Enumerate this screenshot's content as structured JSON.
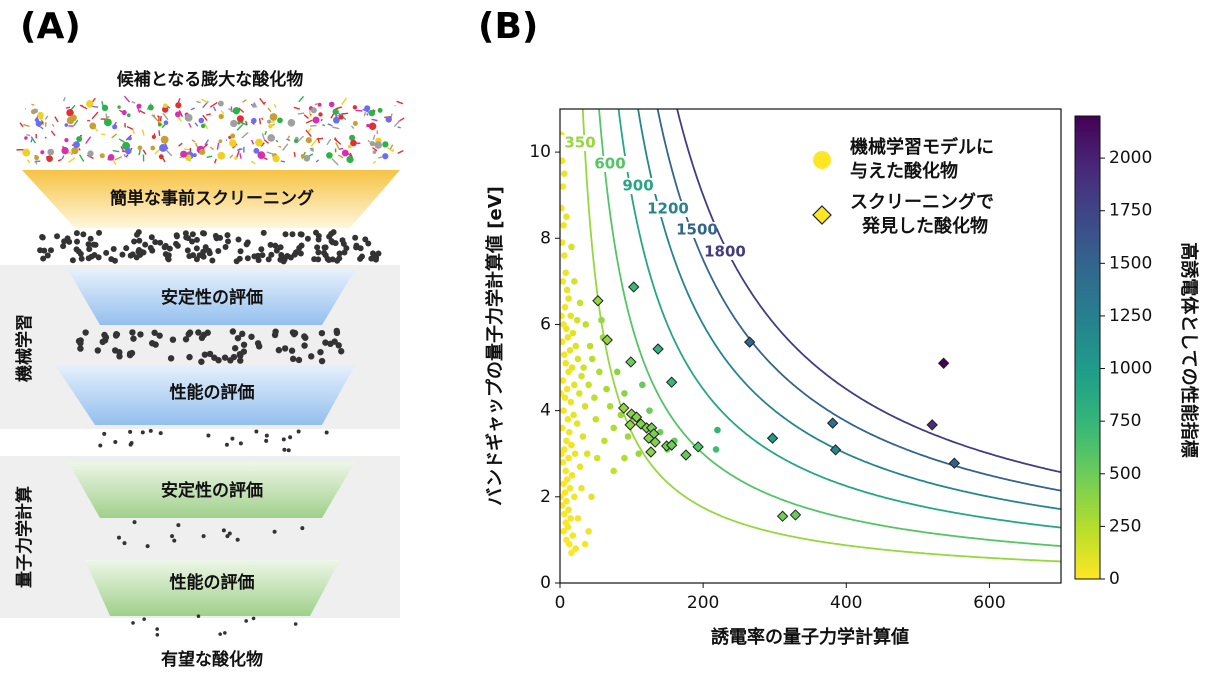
{
  "panel_a": {
    "label": "(A)",
    "top_label": "候補となる膨大な酸化物",
    "steps": [
      "簡単な事前スクリーニング",
      "安定性の評価",
      "性能の評価",
      "安定性の評価",
      "性能の評価"
    ],
    "groups": [
      "機械学習",
      "量子力学計算"
    ],
    "result_label": "有望な酸化物"
  },
  "chart_data": {
    "type": "scatter",
    "panel_label": "(B)",
    "xlabel": "誘電率の量子力学計算値",
    "ylabel": "バンドギャップの量子力学計算値 [eV]",
    "xlim": [
      0,
      700
    ],
    "ylim": [
      0,
      11
    ],
    "xticks": [
      0,
      200,
      400,
      600
    ],
    "yticks": [
      0,
      2,
      4,
      6,
      8,
      10
    ],
    "colormap": "viridis_r",
    "legend": "upper right",
    "colorbar": {
      "label": "高誘電体としての性能指標",
      "lim": [
        0,
        2200
      ],
      "ticks": [
        0,
        250,
        500,
        750,
        1000,
        1250,
        1500,
        1750,
        2000
      ]
    },
    "contours": {
      "levels": [
        350,
        600,
        900,
        1200,
        1500,
        1800
      ]
    },
    "series": [
      {
        "name": [
          "機械学習モデルに",
          "与えた酸化物"
        ],
        "marker": "circle",
        "color": "#fde725",
        "x": [
          2,
          3,
          4,
          2,
          5,
          3,
          6,
          8,
          4,
          10,
          12,
          7,
          15,
          5,
          9,
          18,
          11,
          3,
          22,
          14,
          6,
          25,
          8,
          17,
          12,
          30,
          4,
          20,
          10,
          27,
          7,
          15,
          35,
          5,
          19,
          11,
          24,
          3,
          13,
          32,
          9,
          16,
          6,
          21,
          12,
          4,
          28,
          8,
          17,
          10,
          5,
          14,
          7,
          20,
          9,
          3,
          12,
          6,
          15,
          8,
          11,
          5,
          18,
          9,
          13,
          22,
          16,
          25,
          30,
          38,
          40,
          42,
          36,
          28,
          20,
          16,
          9,
          6,
          2,
          1,
          2,
          1,
          24,
          33,
          45,
          48,
          50,
          55,
          60,
          65,
          70,
          75,
          80,
          85,
          90,
          95,
          105,
          110,
          115,
          125,
          140,
          150,
          160,
          218,
          220,
          58,
          52,
          62,
          44,
          40,
          35,
          75,
          90
        ],
        "values": [
          10.4,
          9.8,
          9.2,
          8.7,
          8.3,
          7.9,
          7.6,
          7.2,
          7.0,
          6.8,
          6.6,
          6.4,
          6.2,
          6.0,
          5.9,
          5.8,
          5.7,
          5.6,
          5.5,
          5.4,
          5.3,
          5.2,
          5.1,
          5.0,
          4.9,
          4.8,
          4.7,
          4.6,
          4.5,
          4.4,
          4.3,
          4.2,
          4.1,
          4.0,
          3.9,
          3.8,
          3.7,
          3.6,
          3.5,
          3.4,
          3.3,
          3.2,
          3.1,
          3.0,
          2.9,
          2.8,
          2.7,
          2.6,
          2.5,
          2.4,
          2.3,
          2.2,
          2.1,
          2.0,
          1.9,
          1.8,
          1.7,
          1.6,
          1.5,
          1.4,
          1.3,
          1.2,
          1.1,
          1.0,
          0.9,
          0.8,
          0.7,
          1.5,
          2.2,
          3.0,
          4.6,
          5.5,
          6.0,
          6.5,
          7.0,
          7.8,
          8.5,
          9.5,
          6.2,
          4.4,
          3.0,
          2.0,
          6.1,
          5.0,
          5.2,
          4.3,
          3.8,
          4.9,
          5.7,
          4.5,
          4.1,
          3.6,
          4.9,
          3.9,
          4.4,
          3.4,
          3.8,
          3.0,
          4.6,
          4.0,
          3.5,
          3.1,
          3.3,
          3.1,
          3.55,
          6.1,
          2.9,
          3.3,
          2.0,
          1.2,
          0.9,
          2.6,
          2.9
        ]
      },
      {
        "name": [
          "スクリーニングで",
          "発見した酸化物"
        ],
        "marker": "diamond",
        "color": "#fde725",
        "x": [
          53,
          103,
          66,
          99,
          137,
          265,
          536,
          156,
          381,
          520,
          89,
          100,
          107,
          113,
          98,
          121,
          128,
          131,
          124,
          133,
          149,
          156,
          193,
          176,
          127,
          297,
          385,
          551,
          311,
          329
        ],
        "values": [
          6.55,
          6.87,
          5.64,
          5.13,
          5.43,
          5.59,
          5.1,
          4.66,
          3.71,
          3.67,
          4.06,
          3.92,
          3.85,
          3.69,
          3.67,
          3.6,
          3.6,
          3.46,
          3.36,
          3.27,
          3.18,
          3.2,
          3.16,
          2.97,
          3.04,
          3.36,
          3.09,
          2.78,
          1.55,
          1.58
        ]
      }
    ]
  }
}
